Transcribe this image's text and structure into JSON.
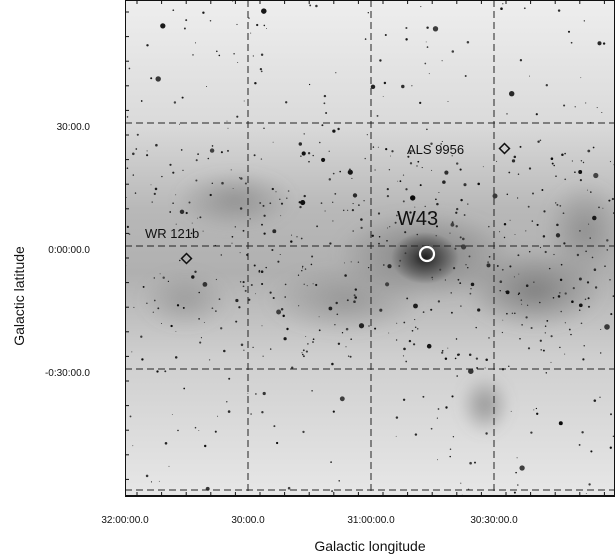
{
  "figure": {
    "x_axis_title": "Galactic longitude",
    "y_axis_title": "Galactic latitude",
    "x_tick_labels": [
      "32:00:00.0",
      "30:00.0",
      "31:00:00.0",
      "30:30:00.0"
    ],
    "y_tick_labels": [
      "30:00.0",
      "0:00:00.0",
      "-0:30:00.0"
    ]
  },
  "annotations": {
    "w43_label": "W43",
    "als_label": "ALS 9956",
    "wr_label": "WR 121b"
  },
  "colors": {
    "background_gray": "#d9d9d9",
    "grid_line": "#222222",
    "marker_white": "#ffffff"
  }
}
